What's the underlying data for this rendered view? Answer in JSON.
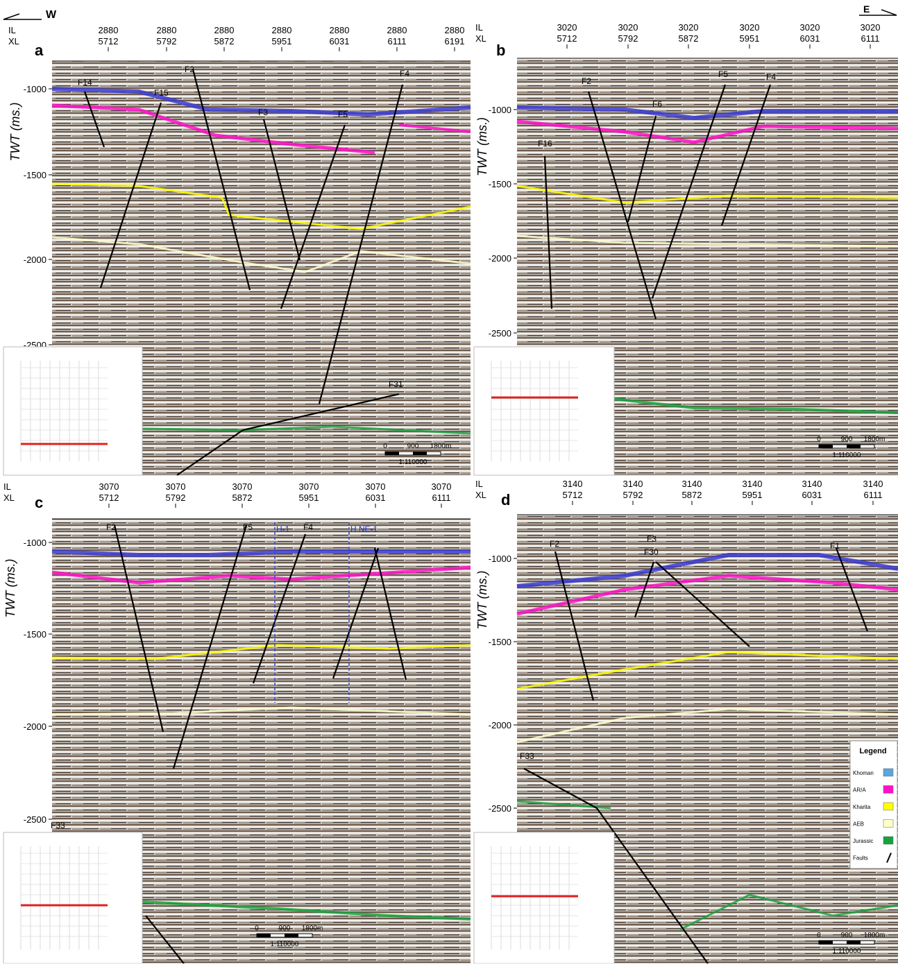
{
  "header": {
    "left": "W",
    "right": "E"
  },
  "panels": [
    {
      "label": "a",
      "il_label": "IL",
      "xl_label": "XL",
      "y_axis_label": "TWT (ms.)",
      "columns": [
        {
          "il": "2880",
          "xl": "5712"
        },
        {
          "il": "2880",
          "xl": "5792"
        },
        {
          "il": "2880",
          "xl": "5872"
        },
        {
          "il": "2880",
          "xl": "5951"
        },
        {
          "il": "2880",
          "xl": "6031"
        },
        {
          "il": "2880",
          "xl": "6111"
        },
        {
          "il": "2880",
          "xl": "6191"
        }
      ],
      "y_ticks": [
        "-1000",
        "-1500",
        "-2000",
        "-2500"
      ],
      "faults": [
        "F14",
        "F15",
        "F2",
        "F3",
        "F5",
        "F4",
        "F31"
      ],
      "scale": {
        "ticks": [
          "0",
          "900",
          "1800m"
        ],
        "ratio": "1:110000"
      }
    },
    {
      "label": "b",
      "il_label": "IL",
      "xl_label": "XL",
      "y_axis_label": "TWT (ms.)",
      "columns": [
        {
          "il": "3020",
          "xl": "5712"
        },
        {
          "il": "3020",
          "xl": "5792"
        },
        {
          "il": "3020",
          "xl": "5872"
        },
        {
          "il": "3020",
          "xl": "5951"
        },
        {
          "il": "3020",
          "xl": "6031"
        },
        {
          "il": "3020",
          "xl": "6111"
        }
      ],
      "y_ticks": [
        "-1000",
        "-1500",
        "-2000",
        "-2500"
      ],
      "faults": [
        "F2",
        "F6",
        "F5",
        "F4",
        "F16"
      ],
      "scale": {
        "ticks": [
          "0",
          "900",
          "1800m"
        ],
        "ratio": "1:110000"
      }
    },
    {
      "label": "c",
      "il_label": "IL",
      "xl_label": "XL",
      "y_axis_label": "TWT (ms.)",
      "columns": [
        {
          "il": "3070",
          "xl": "5712"
        },
        {
          "il": "3070",
          "xl": "5792"
        },
        {
          "il": "3070",
          "xl": "5872"
        },
        {
          "il": "3070",
          "xl": "5951"
        },
        {
          "il": "3070",
          "xl": "6031"
        },
        {
          "il": "3070",
          "xl": "6111"
        }
      ],
      "y_ticks": [
        "-1000",
        "-1500",
        "-2000",
        "-2500"
      ],
      "faults": [
        "F2",
        "F5",
        "F4",
        "F33"
      ],
      "wells": [
        "H-1",
        "H NE-1"
      ],
      "scale": {
        "ticks": [
          "0",
          "900",
          "1800m"
        ],
        "ratio": "1:110000"
      }
    },
    {
      "label": "d",
      "il_label": "IL",
      "xl_label": "XL",
      "y_axis_label": "TWT (ms.)",
      "columns": [
        {
          "il": "3140",
          "xl": "5712"
        },
        {
          "il": "3140",
          "xl": "5792"
        },
        {
          "il": "3140",
          "xl": "5872"
        },
        {
          "il": "3140",
          "xl": "5951"
        },
        {
          "il": "3140",
          "xl": "6031"
        },
        {
          "il": "3140",
          "xl": "6111"
        }
      ],
      "y_ticks": [
        "-1000",
        "-1500",
        "-2000",
        "-2500"
      ],
      "faults": [
        "F2",
        "F3",
        "F30",
        "F1",
        "F33"
      ],
      "scale": {
        "ticks": [
          "0",
          "900",
          "1800m"
        ],
        "ratio": "1:110000"
      }
    }
  ],
  "legend": {
    "title": "Legend",
    "items": [
      {
        "name": "Khoman",
        "color": "#5aa6dd"
      },
      {
        "name": "AR/A",
        "color": "#ff10c8"
      },
      {
        "name": "Kharita",
        "color": "#ffff00"
      },
      {
        "name": "AEB",
        "color": "#ffffcc"
      },
      {
        "name": "Jurassic",
        "color": "#17a33c"
      },
      {
        "name": "Faults",
        "color": "#000000"
      }
    ]
  }
}
